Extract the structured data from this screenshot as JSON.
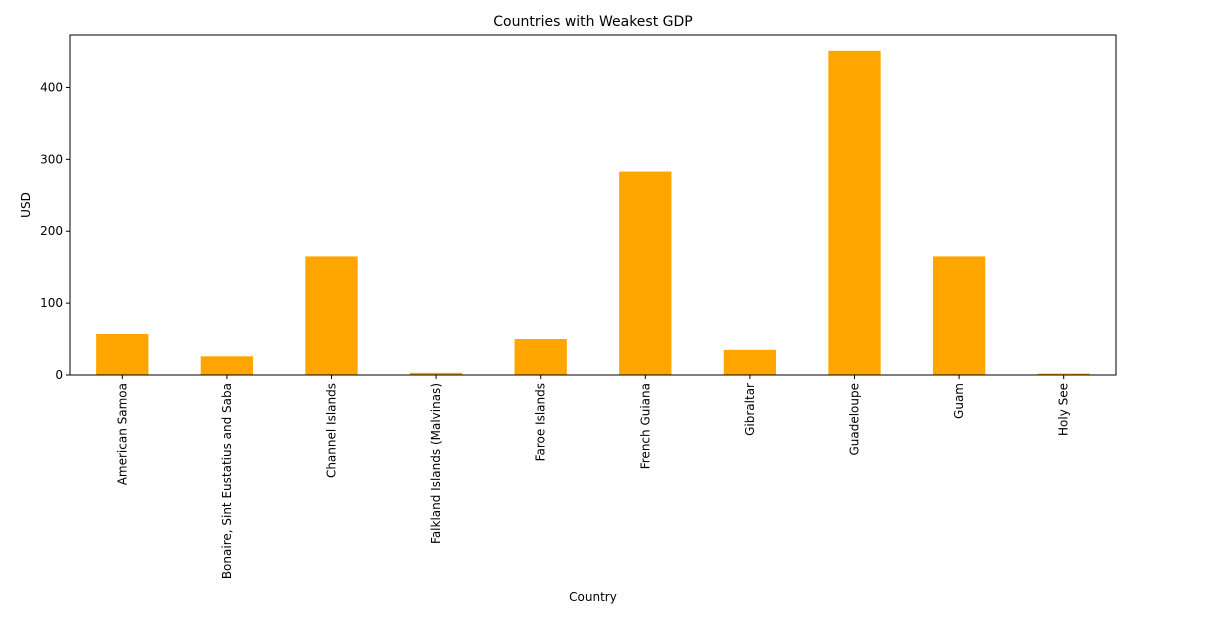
{
  "chart_data": {
    "type": "bar",
    "title": "Countries with Weakest GDP",
    "xlabel": "Country",
    "ylabel": "USD",
    "categories": [
      "American Samoa",
      "Bonaire, Sint Eustatius and Saba",
      "Channel Islands",
      "Falkland Islands (Malvinas)",
      "Faroe Islands",
      "French Guiana",
      "Gibraltar",
      "Guadeloupe",
      "Guam",
      "Holy See"
    ],
    "values": [
      57,
      26,
      165,
      3,
      50,
      283,
      35,
      451,
      165,
      2
    ],
    "ylim": [
      0,
      473
    ],
    "yticks": [
      0,
      100,
      200,
      300,
      400
    ],
    "bar_color": "#ffa500",
    "grid": false,
    "legend": "none"
  }
}
